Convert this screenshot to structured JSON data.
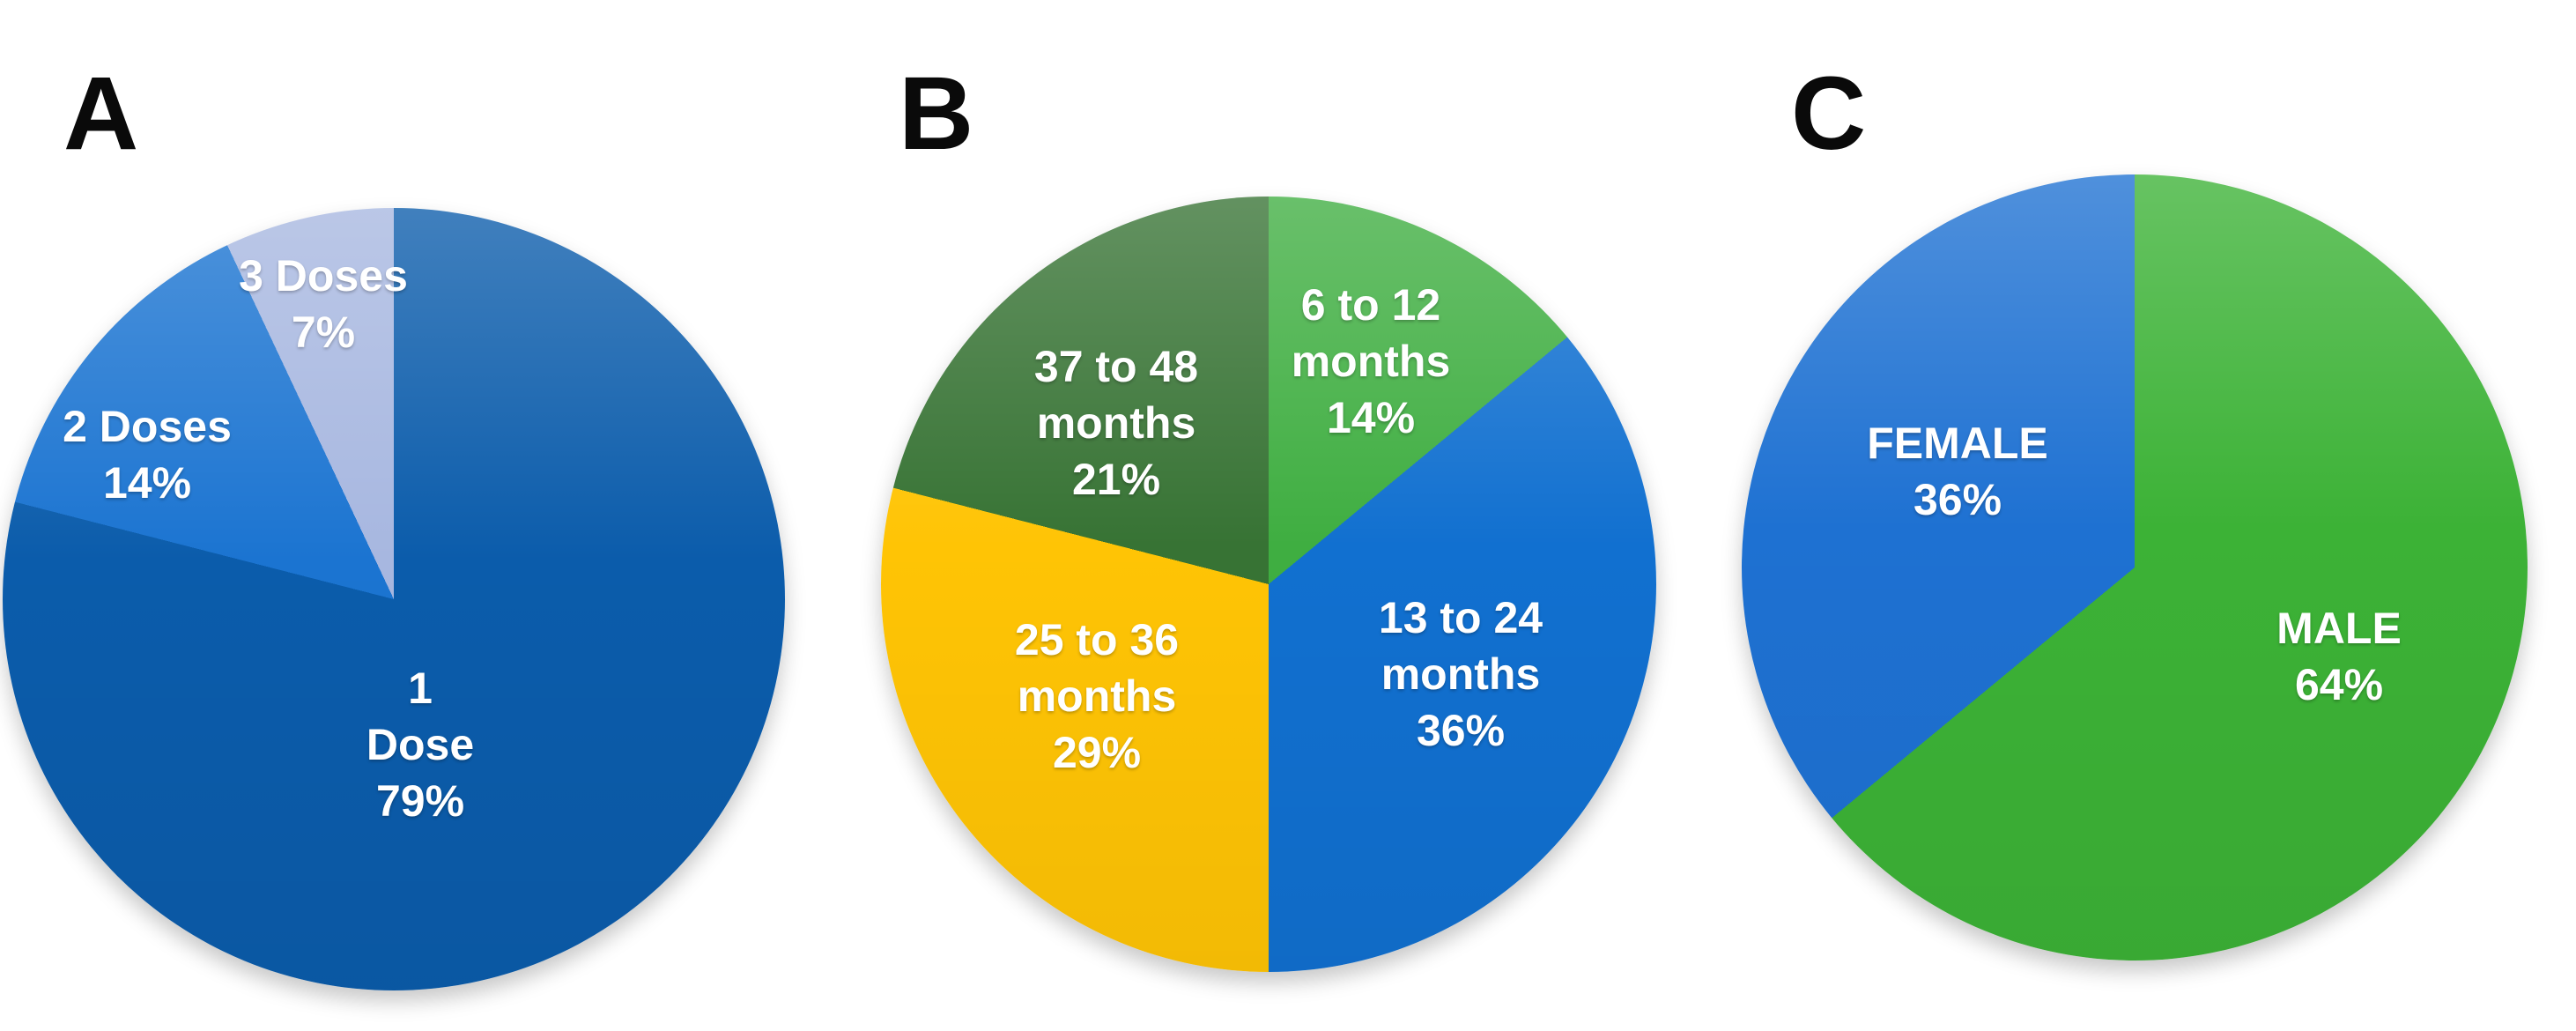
{
  "figure": {
    "background": "#ffffff",
    "text_color": "#ffffff",
    "panels": [
      {
        "letter": "A"
      },
      {
        "letter": "B"
      },
      {
        "letter": "C"
      }
    ]
  },
  "chart_data": [
    {
      "type": "pie",
      "panel": "A",
      "start_angle_deg": 0,
      "direction": "clockwise",
      "slices": [
        {
          "label": "1 Dose",
          "value_pct": 79,
          "color": "#0B5CAB",
          "label_lines": [
            "1",
            "Dose",
            "79%"
          ]
        },
        {
          "label": "2 Doses",
          "value_pct": 14,
          "color": "#1B74D1",
          "label_lines": [
            "2 Doses",
            "14%"
          ]
        },
        {
          "label": "3 Doses",
          "value_pct": 7,
          "color": "#A7B7E0",
          "label_lines": [
            "3 Doses",
            "7%"
          ]
        }
      ]
    },
    {
      "type": "pie",
      "panel": "B",
      "start_angle_deg": 0,
      "direction": "clockwise",
      "slices": [
        {
          "label": "6 to 12 months",
          "value_pct": 14,
          "color": "#3FAE41",
          "label_lines": [
            "6 to 12",
            "months",
            "14%"
          ]
        },
        {
          "label": "13 to 24 months",
          "value_pct": 36,
          "color": "#1170D0",
          "label_lines": [
            "13 to 24",
            "months",
            "36%"
          ]
        },
        {
          "label": "25 to 36 months",
          "value_pct": 29,
          "color": "#FFC405",
          "label_lines": [
            "25 to 36",
            "months",
            "29%"
          ]
        },
        {
          "label": "37 to 48 months",
          "value_pct": 21,
          "color": "#377334",
          "label_lines": [
            "37 to 48",
            "months",
            "21%"
          ]
        }
      ]
    },
    {
      "type": "pie",
      "panel": "C",
      "start_angle_deg": 0,
      "direction": "clockwise",
      "slices": [
        {
          "label": "MALE",
          "value_pct": 64,
          "color": "#3CB236",
          "label_lines": [
            "MALE",
            "64%"
          ]
        },
        {
          "label": "FEMALE",
          "value_pct": 36,
          "color": "#1E71D2",
          "label_lines": [
            "FEMALE",
            "36%"
          ]
        }
      ]
    }
  ]
}
